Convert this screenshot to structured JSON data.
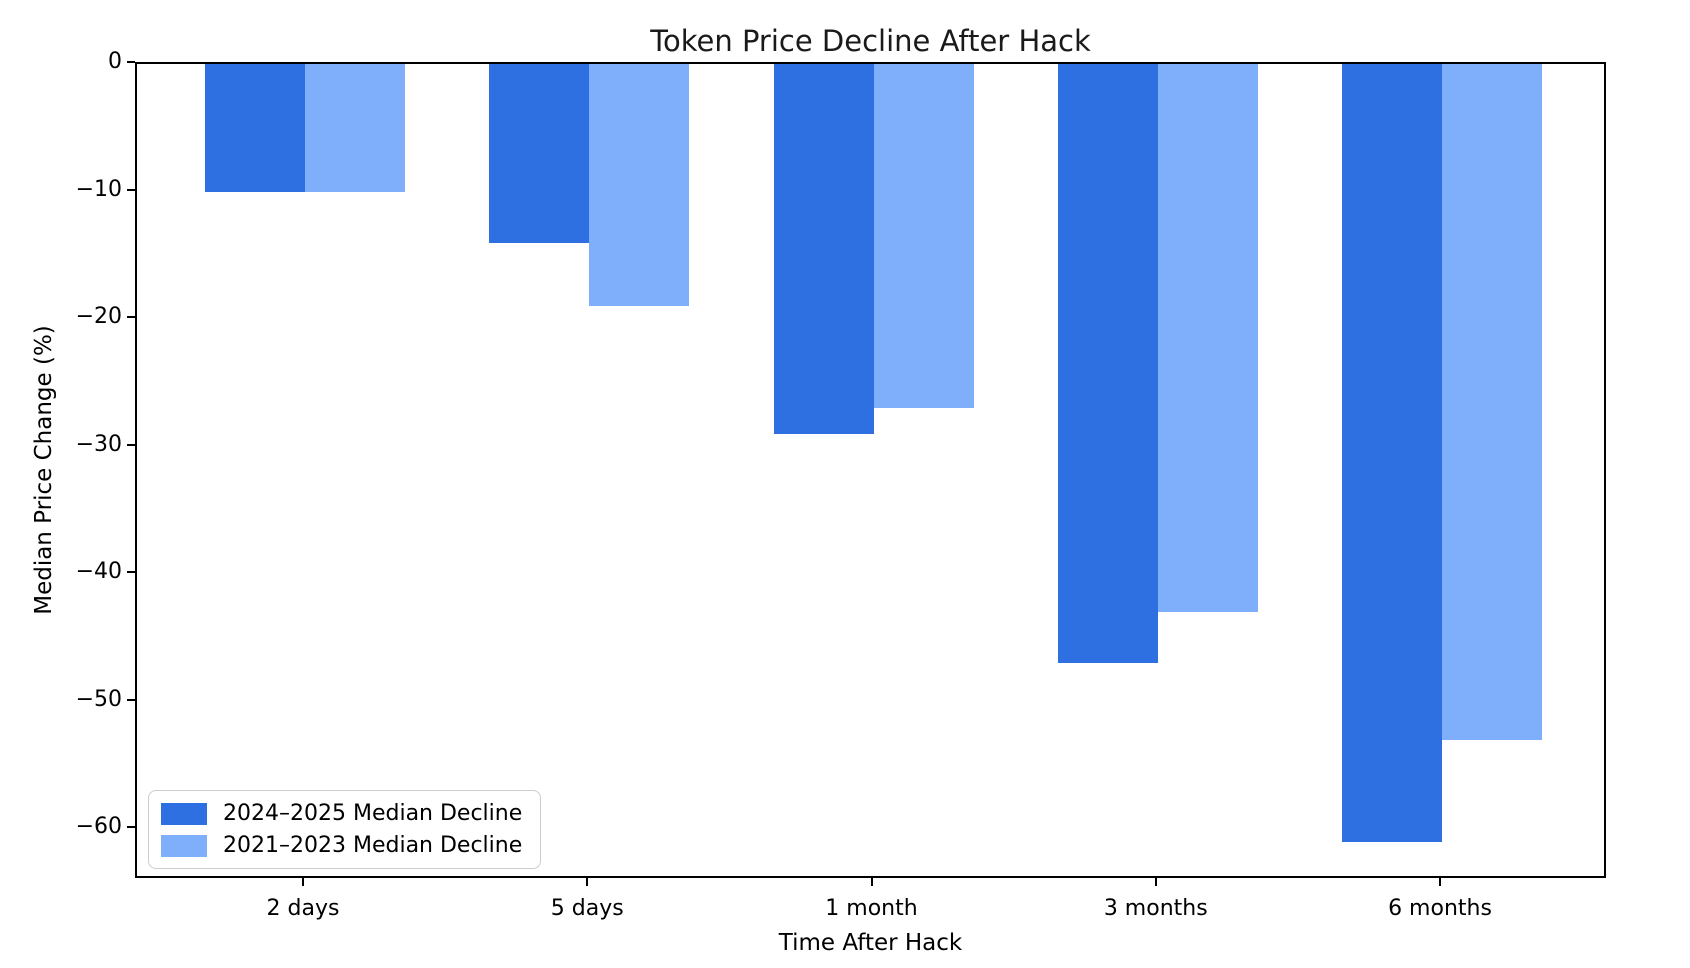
{
  "chart_data": {
    "type": "bar",
    "title": "Token Price Decline After Hack",
    "xlabel": "Time After Hack",
    "ylabel": "Median Price Change (%)",
    "categories": [
      "2 days",
      "5 days",
      "1 month",
      "3 months",
      "6 months"
    ],
    "series": [
      {
        "name": "2024–2025 Median Decline",
        "color": "#2E6FE1",
        "values": [
          -10,
          -14,
          -29,
          -47,
          -61
        ]
      },
      {
        "name": "2021–2023 Median Decline",
        "color": "#7FAFFA",
        "values": [
          -10,
          -19,
          -27,
          -43,
          -53
        ]
      }
    ],
    "ylim": [
      -64,
      0
    ],
    "yticks": [
      0,
      -10,
      -20,
      -30,
      -40,
      -50,
      -60
    ],
    "grid": false,
    "legend_position": "lower left",
    "axis_color": "#000000",
    "background_color": "#ffffff"
  }
}
